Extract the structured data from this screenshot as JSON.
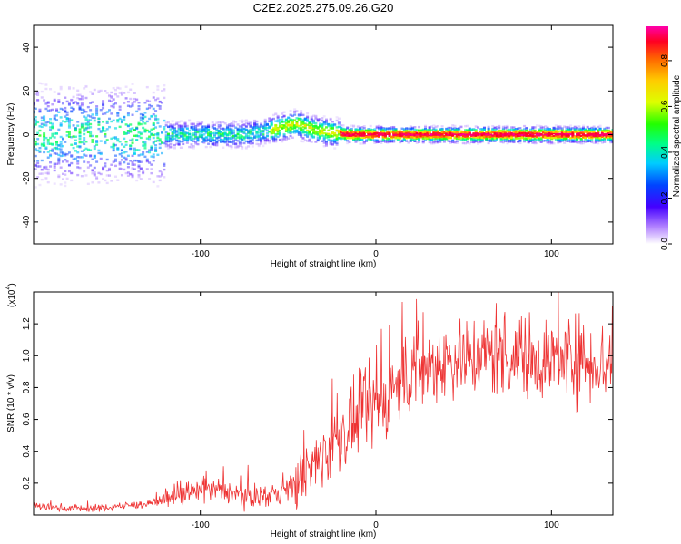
{
  "title": "C2E2.2025.275.09.26.G20",
  "chart_data": [
    {
      "type": "heatmap",
      "xlabel": "Height of straight line (km)",
      "ylabel": "Frequency (Hz)",
      "xlim": [
        -195,
        135
      ],
      "ylim": [
        -50,
        50
      ],
      "xticks": [
        -100,
        0,
        100
      ],
      "yticks": [
        -40,
        -20,
        0,
        20,
        40
      ],
      "colorbar": {
        "label": "Normalized spectral amplitude",
        "range": [
          0,
          0.95
        ],
        "ticks": [
          0.0,
          0.2,
          0.4,
          0.6,
          0.8
        ],
        "tick_labels": [
          "0.0",
          "0.2",
          "0.4",
          "0.6",
          "0.8"
        ]
      },
      "ridge": {
        "x": [
          -195,
          -150,
          -100,
          -75,
          -60,
          -45,
          -35,
          -25,
          -15,
          0,
          50,
          100,
          135
        ],
        "y": [
          0,
          0,
          0,
          0,
          2,
          5,
          2,
          1,
          0,
          0,
          0,
          0,
          0
        ]
      }
    },
    {
      "type": "line",
      "xlabel": "Height of straight line (km)",
      "ylabel": "SNR (10 * v/v)",
      "y_scale_label": "(x10",
      "y_scale_exponent": "4",
      "xlim": [
        -195,
        135
      ],
      "ylim": [
        0,
        1.4
      ],
      "xticks": [
        -100,
        0,
        100
      ],
      "yticks": [
        0.2,
        0.4,
        0.6,
        0.8,
        1.0,
        1.2
      ],
      "ytick_labels": [
        "0.2",
        "0.4",
        "0.6",
        "0.8",
        "1.0",
        "1.2"
      ],
      "line_color": "#ee3333",
      "trend": {
        "x": [
          -195,
          -160,
          -130,
          -110,
          -90,
          -75,
          -60,
          -50,
          -40,
          -30,
          -20,
          -10,
          0,
          10,
          20,
          40,
          60,
          80,
          100,
          120,
          135
        ],
        "y": [
          0.05,
          0.04,
          0.07,
          0.13,
          0.16,
          0.12,
          0.12,
          0.17,
          0.25,
          0.38,
          0.5,
          0.6,
          0.68,
          0.78,
          0.88,
          0.98,
          1.0,
          1.0,
          0.98,
          0.97,
          0.95
        ]
      }
    }
  ]
}
